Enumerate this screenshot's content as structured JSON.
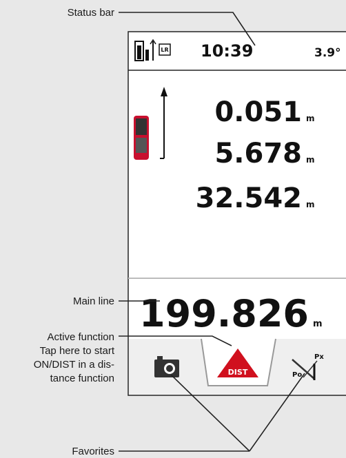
{
  "callouts": {
    "status_bar": "Status bar",
    "main_line": "Main line",
    "active_function": [
      "Active function",
      "Tap here to start",
      "ON/DIST in a dis-",
      "tance function"
    ],
    "favorites": "Favorites"
  },
  "screen": {
    "status": {
      "range_icon": "LR",
      "time": "10:39",
      "tilt": "3.9°"
    },
    "measurements": [
      {
        "value": "0.051",
        "unit": "m"
      },
      {
        "value": "5.678",
        "unit": "m"
      },
      {
        "value": "32.542",
        "unit": "m"
      }
    ],
    "main_line": {
      "value": "199.826",
      "unit": "m"
    },
    "active_button": "DIST",
    "favorite_labels": [
      "Px",
      "Po"
    ]
  }
}
